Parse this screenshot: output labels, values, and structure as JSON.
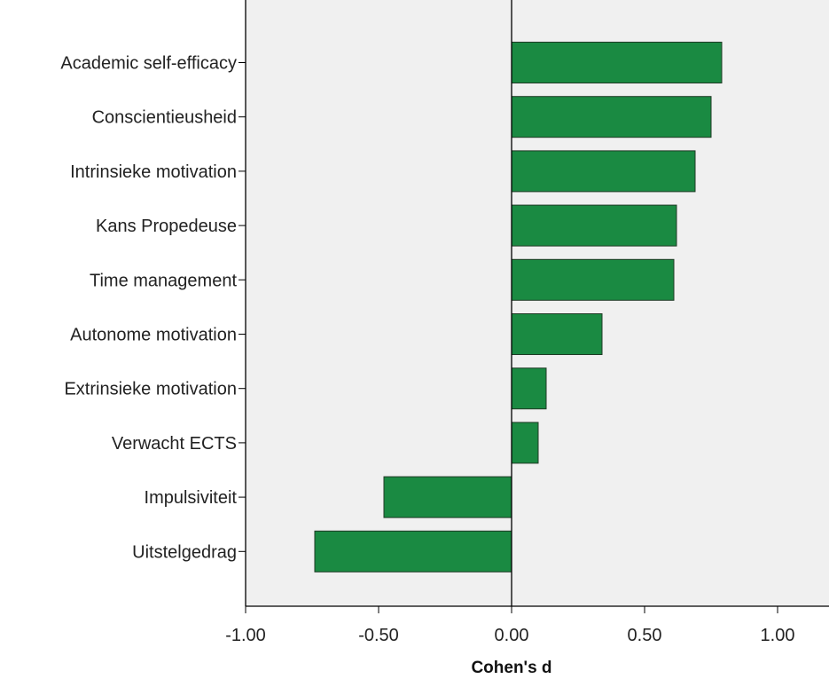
{
  "chart_data": {
    "type": "bar",
    "orientation": "horizontal",
    "xlabel": "Cohen's d",
    "ylabel": "",
    "xlim": [
      -1.0,
      1.2
    ],
    "xticks": [
      -1.0,
      -0.5,
      0.0,
      0.5,
      1.0
    ],
    "tick_labels": [
      "-1.00",
      "-0.50",
      "0.00",
      "0.50",
      "1.00"
    ],
    "grid": false,
    "categories": [
      "Academic self-efficacy",
      "Conscientieusheid",
      "Intrinsieke motivation",
      "Kans Propedeuse",
      "Time management",
      "Autonome motivation",
      "Extrinsieke motivation",
      "Verwacht ECTS",
      "Impulsiviteit",
      "Uitstelgedrag"
    ],
    "values": [
      0.79,
      0.75,
      0.69,
      0.62,
      0.61,
      0.34,
      0.13,
      0.1,
      -0.48,
      -0.74
    ],
    "colors": {
      "bar_fill": "#1a8a42",
      "bar_stroke": "#1f3a25",
      "plot_bg": "#f0f0f0",
      "axis": "#000000"
    }
  }
}
